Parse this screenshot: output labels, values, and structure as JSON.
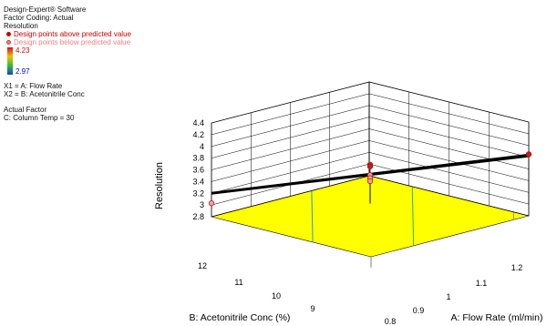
{
  "info_panel": {
    "software": "Design-Expert® Software",
    "coding": "Factor Coding: Actual",
    "response": "Resolution",
    "legend_above": "Design points above predicted value",
    "legend_below": "Design points below predicted value",
    "legend_above_color": "#cc0000",
    "legend_below_color": "#f08080",
    "gradient_max": "4.23",
    "gradient_min": "2.97",
    "x1": "X1 = A: Flow Rate",
    "x2": "X2 = B: Acetonitrile Conc",
    "actual_factor_title": "Actual Factor",
    "actual_factor": "C: Column Temp = 30"
  },
  "chart_data": {
    "type": "surface3d",
    "zlabel": "Resolution",
    "xlabel": "A: Flow Rate  (ml/min)",
    "ylabel": "B: Acetonitrile Conc  (%)",
    "xlim": [
      0.8,
      1.2
    ],
    "ylim": [
      8,
      12
    ],
    "zlim": [
      2.8,
      4.4
    ],
    "x_ticks": [
      "0.8",
      "0.9",
      "1",
      "1.1",
      "1.2"
    ],
    "y_ticks": [
      "9",
      "10",
      "11",
      "12"
    ],
    "z_ticks": [
      "2.8",
      "3",
      "3.2",
      "3.4",
      "3.6",
      "3.8",
      "4",
      "4.2",
      "4.4"
    ],
    "surface_line": [
      {
        "x": 0.8,
        "y": 12,
        "z": 3.2
      },
      {
        "x": 1.2,
        "y": 8,
        "z": 3.83
      }
    ],
    "design_points": [
      {
        "x": 0.8,
        "y": 12,
        "z": 3.03,
        "side": "below"
      },
      {
        "x": 1.0,
        "y": 10,
        "z": 3.68,
        "side": "above"
      },
      {
        "x": 1.0,
        "y": 10,
        "z": 3.65,
        "side": "above"
      },
      {
        "x": 1.0,
        "y": 10,
        "z": 3.5,
        "side": "below"
      },
      {
        "x": 1.0,
        "y": 10,
        "z": 3.45,
        "side": "below"
      },
      {
        "x": 1.0,
        "y": 10,
        "z": 3.4,
        "side": "below"
      },
      {
        "x": 1.2,
        "y": 8,
        "z": 3.85,
        "side": "above"
      }
    ],
    "contour_levels": [
      {
        "z": 3.2,
        "color": "#1fa0d0"
      },
      {
        "z": 3.4,
        "color": "#1fa0d0"
      },
      {
        "z": 3.6,
        "color": "#30b060"
      },
      {
        "z": 3.8,
        "color": "#d08060"
      }
    ],
    "floor_color": "#ffff00"
  }
}
